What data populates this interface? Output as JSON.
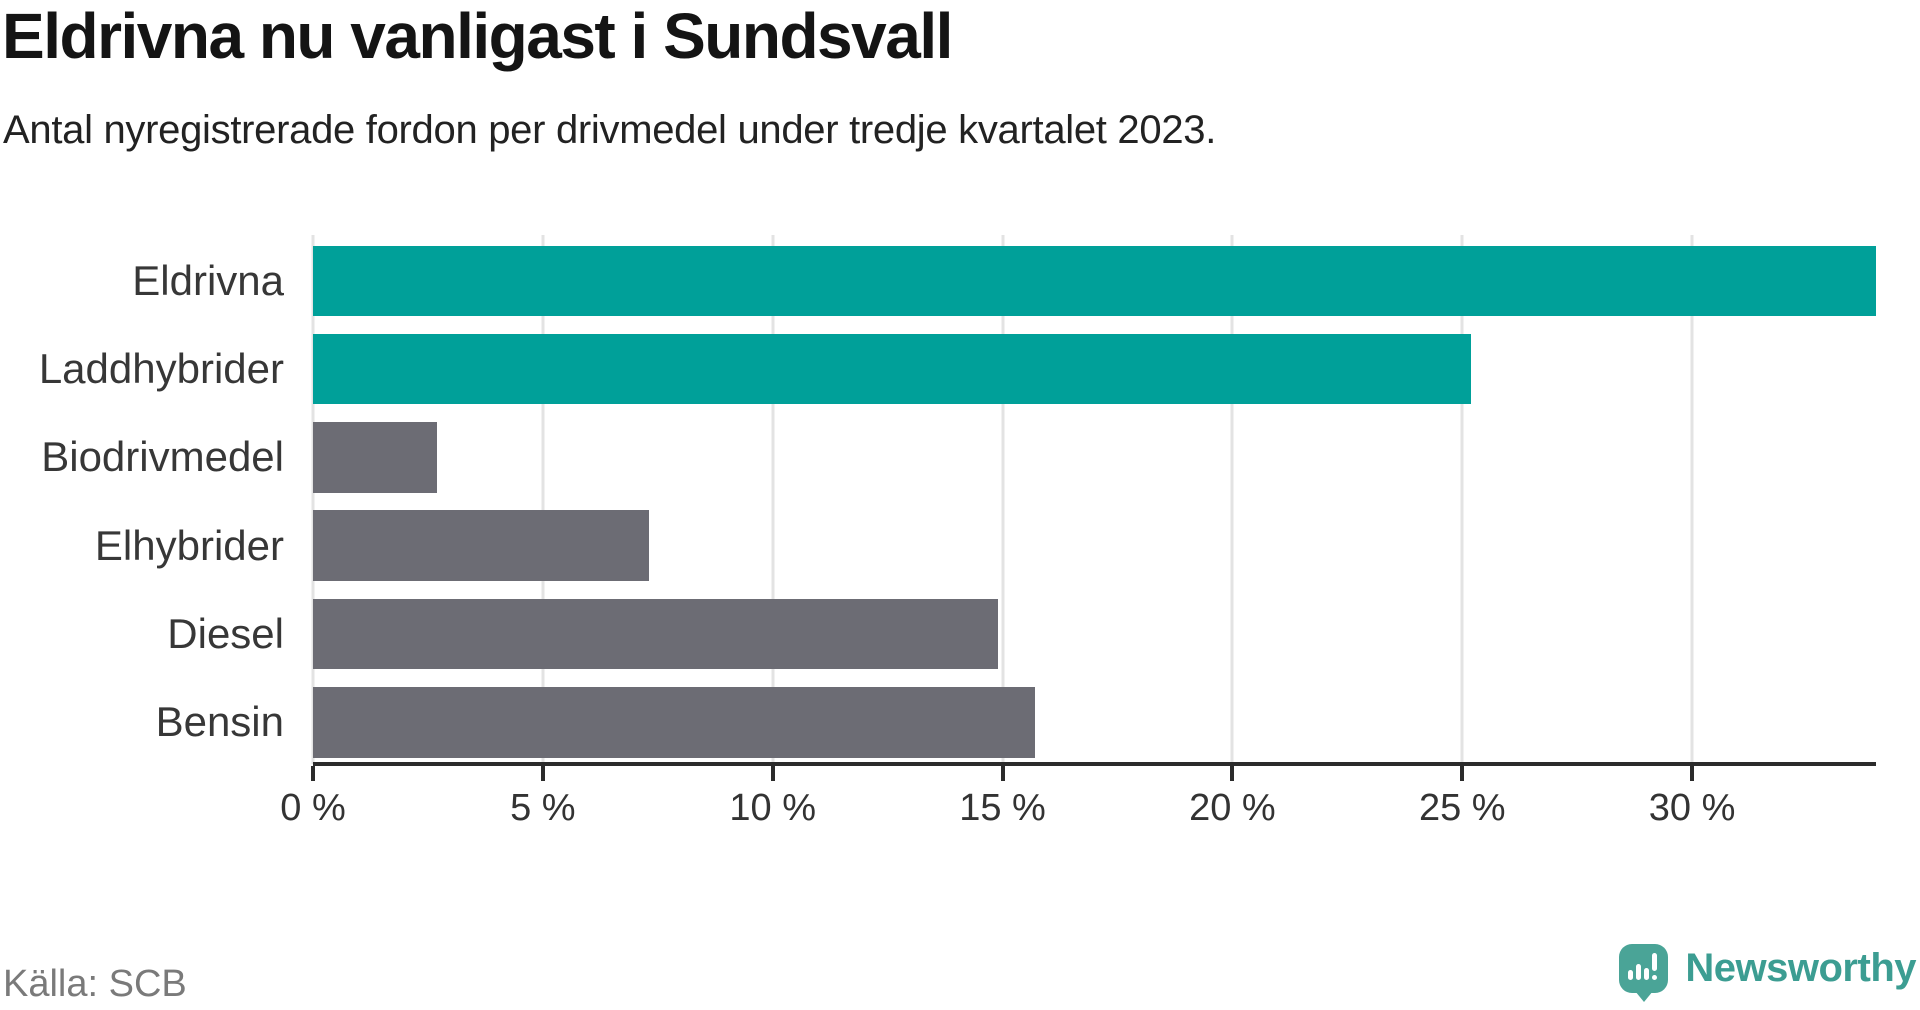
{
  "chart_data": {
    "type": "bar",
    "orientation": "horizontal",
    "title": "Eldrivna nu vanligast i Sundsvall",
    "subtitle": "Antal nyregistrerade fordon per drivmedel under tredje kvartalet 2023.",
    "categories": [
      "Eldrivna",
      "Laddhybrider",
      "Biodrivmedel",
      "Elhybrider",
      "Diesel",
      "Bensin"
    ],
    "values": [
      34.0,
      25.2,
      2.7,
      7.3,
      14.9,
      15.7
    ],
    "unit": "%",
    "highlighted": [
      true,
      true,
      false,
      false,
      false,
      false
    ],
    "colors": {
      "highlight": "#00a099",
      "default": "#6c6c74",
      "gridline": "#e3e3e3",
      "axis": "#2b2b2b"
    },
    "xlim": [
      0,
      34.0
    ],
    "x_ticks": [
      0,
      5,
      10,
      15,
      20,
      25,
      30
    ],
    "x_tick_labels": [
      "0 %",
      "5 %",
      "10 %",
      "15 %",
      "20 %",
      "25 %",
      "30 %"
    ],
    "grid": "vertical",
    "legend": "none"
  },
  "footer": {
    "source": "Källa: SCB",
    "brand": "Newsworthy"
  }
}
